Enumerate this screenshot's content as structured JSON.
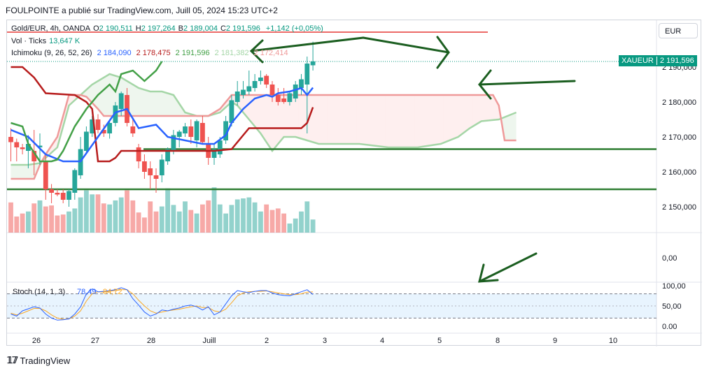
{
  "caption": "FOULPOINTE a publié sur TradingView.com, Juill 05, 2024 15:23 UTC+2",
  "legend": {
    "symbol": "Gold/EUR, 4h, OANDA",
    "ohlc": [
      {
        "key": "O",
        "value": "2 190,511"
      },
      {
        "key": "H",
        "value": "2 197,264"
      },
      {
        "key": "B",
        "value": "2 189,004"
      },
      {
        "key": "C",
        "value": "2 191,596"
      }
    ],
    "change": "+1,142 (+0,05%)",
    "volume_label": "Vol · Ticks",
    "volume_value": "13,647 K",
    "ichimoku_label": "Ichimoku (9, 26, 52, 26)",
    "ichimoku_values": [
      "2 184,090",
      "2 178,475",
      "2 191,596",
      "2 181,382",
      "2 172,414"
    ]
  },
  "currency": "EUR",
  "price_badge": {
    "symbol": "XAUEUR",
    "price": "2 191,596"
  },
  "stoch": {
    "label": "Stoch (14, 1, 3)",
    "k": "78,49",
    "d": "84,72"
  },
  "footer": {
    "brand": "TradingView"
  },
  "colors": {
    "up": "#26a69a",
    "down": "#ef5350",
    "tenkan": "#2962ff",
    "kijun": "#b71c1c",
    "chikou": "#43a047",
    "spanA": "#a5d6a7",
    "spanB": "#ef9a9a",
    "stochK": "#2962ff",
    "stochD": "#f9a825",
    "hline": "#2e7d32",
    "annot": "#1b5e20"
  },
  "chart_data": {
    "type": "candlestick",
    "title": "Gold/EUR, 4h, OANDA",
    "x_labels": [
      "26",
      "27",
      "28",
      "Juill",
      "2",
      "3",
      "4",
      "5",
      "8",
      "9",
      "10"
    ],
    "price_ticks": [
      "2 150,000",
      "2 160,000",
      "2 170,000",
      "2 180,000",
      "2 190,000"
    ],
    "ylim": [
      2145,
      2203
    ],
    "current_price": 2191.596,
    "candles": [
      {
        "o": 2170.0,
        "h": 2172.5,
        "l": 2163.0,
        "c": 2168.5
      },
      {
        "o": 2168.5,
        "h": 2169.5,
        "l": 2163.0,
        "c": 2167.0
      },
      {
        "o": 2167.0,
        "h": 2168.0,
        "l": 2165.0,
        "c": 2166.5
      },
      {
        "o": 2166.0,
        "h": 2170.5,
        "l": 2161.0,
        "c": 2168.0
      },
      {
        "o": 2166.0,
        "h": 2172.0,
        "l": 2159.0,
        "c": 2163.0
      },
      {
        "o": 2167.0,
        "h": 2171.0,
        "l": 2162.0,
        "c": 2167.5
      },
      {
        "o": 2163.0,
        "h": 2165.0,
        "l": 2152.0,
        "c": 2155.0
      },
      {
        "o": 2155.0,
        "h": 2156.5,
        "l": 2151.0,
        "c": 2154.0
      },
      {
        "o": 2154.0,
        "h": 2155.0,
        "l": 2153.0,
        "c": 2153.5
      },
      {
        "o": 2154.0,
        "h": 2155.0,
        "l": 2151.0,
        "c": 2152.0
      },
      {
        "o": 2152.0,
        "h": 2155.0,
        "l": 2150.0,
        "c": 2154.5
      },
      {
        "o": 2154.0,
        "h": 2161.0,
        "l": 2152.0,
        "c": 2160.5
      },
      {
        "o": 2159.0,
        "h": 2170.0,
        "l": 2158.0,
        "c": 2166.5
      },
      {
        "o": 2166.0,
        "h": 2173.0,
        "l": 2165.0,
        "c": 2171.5
      },
      {
        "o": 2171.0,
        "h": 2176.0,
        "l": 2170.0,
        "c": 2175.0
      },
      {
        "o": 2175.0,
        "h": 2176.5,
        "l": 2171.0,
        "c": 2172.0
      },
      {
        "o": 2172.0,
        "h": 2173.5,
        "l": 2170.0,
        "c": 2171.0
      },
      {
        "o": 2171.0,
        "h": 2175.0,
        "l": 2169.5,
        "c": 2174.0
      },
      {
        "o": 2174.0,
        "h": 2180.0,
        "l": 2173.0,
        "c": 2179.0
      },
      {
        "o": 2178.0,
        "h": 2183.0,
        "l": 2176.0,
        "c": 2182.5
      },
      {
        "o": 2182.0,
        "h": 2184.0,
        "l": 2173.0,
        "c": 2174.0
      },
      {
        "o": 2173.0,
        "h": 2175.0,
        "l": 2170.0,
        "c": 2171.0
      },
      {
        "o": 2167.0,
        "h": 2168.0,
        "l": 2161.0,
        "c": 2163.0
      },
      {
        "o": 2163.0,
        "h": 2165.0,
        "l": 2158.0,
        "c": 2160.0
      },
      {
        "o": 2161.0,
        "h": 2163.0,
        "l": 2155.0,
        "c": 2159.0
      },
      {
        "o": 2159.0,
        "h": 2161.0,
        "l": 2154.0,
        "c": 2158.0
      },
      {
        "o": 2159.0,
        "h": 2165.0,
        "l": 2157.0,
        "c": 2163.5
      },
      {
        "o": 2163.0,
        "h": 2167.0,
        "l": 2162.0,
        "c": 2166.5
      },
      {
        "o": 2166.0,
        "h": 2172.0,
        "l": 2165.0,
        "c": 2170.5
      },
      {
        "o": 2170.0,
        "h": 2172.0,
        "l": 2167.0,
        "c": 2171.5
      },
      {
        "o": 2171.0,
        "h": 2174.0,
        "l": 2170.0,
        "c": 2173.0
      },
      {
        "o": 2173.0,
        "h": 2175.0,
        "l": 2168.0,
        "c": 2170.0
      },
      {
        "o": 2169.0,
        "h": 2175.0,
        "l": 2167.0,
        "c": 2174.5
      },
      {
        "o": 2174.0,
        "h": 2176.0,
        "l": 2168.0,
        "c": 2168.5
      },
      {
        "o": 2168.0,
        "h": 2170.0,
        "l": 2162.0,
        "c": 2164.0
      },
      {
        "o": 2164.0,
        "h": 2168.0,
        "l": 2162.0,
        "c": 2166.5
      },
      {
        "o": 2165.0,
        "h": 2170.0,
        "l": 2164.0,
        "c": 2169.0
      },
      {
        "o": 2169.0,
        "h": 2176.0,
        "l": 2168.0,
        "c": 2174.5
      },
      {
        "o": 2174.0,
        "h": 2182.0,
        "l": 2173.0,
        "c": 2180.5
      },
      {
        "o": 2180.0,
        "h": 2186.0,
        "l": 2179.0,
        "c": 2183.0
      },
      {
        "o": 2182.0,
        "h": 2186.0,
        "l": 2181.0,
        "c": 2183.5
      },
      {
        "o": 2183.0,
        "h": 2189.0,
        "l": 2182.0,
        "c": 2184.5
      },
      {
        "o": 2184.0,
        "h": 2188.0,
        "l": 2183.0,
        "c": 2186.0
      },
      {
        "o": 2186.0,
        "h": 2189.0,
        "l": 2185.0,
        "c": 2187.0
      },
      {
        "o": 2187.5,
        "h": 2188.0,
        "l": 2184.0,
        "c": 2185.0
      },
      {
        "o": 2185.0,
        "h": 2186.0,
        "l": 2180.0,
        "c": 2182.0
      },
      {
        "o": 2182.0,
        "h": 2184.0,
        "l": 2179.0,
        "c": 2180.0
      },
      {
        "o": 2181.0,
        "h": 2184.0,
        "l": 2179.5,
        "c": 2180.0
      },
      {
        "o": 2180.0,
        "h": 2183.0,
        "l": 2179.0,
        "c": 2182.5
      },
      {
        "o": 2181.0,
        "h": 2186.0,
        "l": 2180.0,
        "c": 2185.0
      },
      {
        "o": 2184.0,
        "h": 2188.0,
        "l": 2182.0,
        "c": 2186.5
      },
      {
        "o": 2185.0,
        "h": 2193.0,
        "l": 2171.0,
        "c": 2191.0
      },
      {
        "o": 2190.511,
        "h": 2197.264,
        "l": 2189.004,
        "c": 2191.596
      }
    ],
    "volume": [
      60,
      32,
      38,
      42,
      58,
      64,
      52,
      54,
      34,
      36,
      42,
      48,
      70,
      84,
      76,
      76,
      58,
      56,
      64,
      70,
      84,
      64,
      40,
      30,
      62,
      42,
      52,
      88,
      55,
      42,
      62,
      45,
      38,
      56,
      64,
      90,
      56,
      38,
      55,
      66,
      68,
      70,
      60,
      42,
      56,
      45,
      48,
      38,
      18,
      28,
      42,
      62,
      26
    ],
    "volume_up": [
      false,
      false,
      false,
      true,
      false,
      true,
      false,
      false,
      false,
      false,
      true,
      true,
      true,
      true,
      true,
      false,
      false,
      true,
      true,
      true,
      false,
      false,
      false,
      false,
      false,
      false,
      true,
      true,
      true,
      true,
      true,
      false,
      true,
      false,
      false,
      true,
      true,
      true,
      true,
      true,
      true,
      true,
      true,
      true,
      false,
      false,
      false,
      false,
      true,
      true,
      true,
      true,
      true
    ],
    "ichimoku": {
      "tenkan": [
        [
          0,
          2172
        ],
        [
          3,
          2170
        ],
        [
          6,
          2165
        ],
        [
          9,
          2163
        ],
        [
          12,
          2163
        ],
        [
          15,
          2170
        ],
        [
          18,
          2177
        ],
        [
          20,
          2178
        ],
        [
          22,
          2172.5
        ],
        [
          25,
          2173.5
        ],
        [
          27,
          2170
        ],
        [
          30,
          2169
        ],
        [
          33,
          2168
        ],
        [
          35,
          2168
        ],
        [
          37,
          2170.5
        ],
        [
          38,
          2174
        ],
        [
          40,
          2178
        ],
        [
          42,
          2181
        ],
        [
          44,
          2182
        ],
        [
          45,
          2181.5
        ],
        [
          46,
          2182.5
        ],
        [
          48,
          2183
        ],
        [
          50,
          2184
        ],
        [
          51,
          2182
        ],
        [
          52,
          2184.09
        ]
      ],
      "kijun": [
        [
          0,
          2190
        ],
        [
          2,
          2190
        ],
        [
          4,
          2187
        ],
        [
          6,
          2182.5
        ],
        [
          11,
          2182
        ],
        [
          13,
          2180
        ],
        [
          14,
          2178
        ],
        [
          15,
          2163
        ],
        [
          17,
          2163
        ],
        [
          18,
          2164
        ],
        [
          19,
          2166
        ],
        [
          25,
          2166
        ],
        [
          30,
          2166
        ],
        [
          35,
          2166
        ],
        [
          38,
          2166.5
        ],
        [
          41,
          2172.5
        ],
        [
          44,
          2172.5
        ],
        [
          50,
          2172.5
        ],
        [
          51,
          2174
        ],
        [
          52,
          2178.475
        ]
      ],
      "chikou": [
        [
          0,
          2174
        ],
        [
          2,
          2173
        ],
        [
          3,
          2168
        ],
        [
          5,
          2163
        ],
        [
          7,
          2163
        ],
        [
          8,
          2163.5
        ],
        [
          9,
          2166
        ],
        [
          11,
          2173
        ],
        [
          13,
          2178
        ],
        [
          15,
          2182
        ],
        [
          17,
          2185
        ],
        [
          18,
          2183
        ],
        [
          19,
          2188
        ],
        [
          21,
          2189
        ],
        [
          23,
          2186
        ],
        [
          25,
          2189
        ],
        [
          26,
          2191.596
        ]
      ],
      "spanA": [
        [
          0,
          2162
        ],
        [
          3,
          2162
        ],
        [
          5,
          2162.5
        ],
        [
          6,
          2164
        ],
        [
          8,
          2167
        ],
        [
          10,
          2179
        ],
        [
          12,
          2182
        ],
        [
          14,
          2185
        ],
        [
          17,
          2188
        ],
        [
          19,
          2187
        ],
        [
          22,
          2184
        ],
        [
          24,
          2183
        ],
        [
          26,
          2183
        ],
        [
          28,
          2182
        ],
        [
          30,
          2177
        ],
        [
          32,
          2176
        ],
        [
          34,
          2176
        ],
        [
          36,
          2177
        ],
        [
          38,
          2180
        ],
        [
          39,
          2179
        ],
        [
          41,
          2175
        ],
        [
          43,
          2171
        ],
        [
          45,
          2166
        ],
        [
          47,
          2170
        ],
        [
          49,
          2170
        ],
        [
          51,
          2169
        ],
        [
          53,
          2168
        ],
        [
          60,
          2168
        ],
        [
          65,
          2167
        ],
        [
          70,
          2167
        ],
        [
          74,
          2168
        ],
        [
          77,
          2170
        ],
        [
          79,
          2172.5
        ],
        [
          81,
          2174.5
        ],
        [
          84,
          2175
        ],
        [
          87,
          2177
        ]
      ],
      "spanB": [
        [
          0,
          2158
        ],
        [
          2,
          2158
        ],
        [
          4,
          2158
        ],
        [
          5,
          2162
        ],
        [
          6,
          2165
        ],
        [
          8,
          2170
        ],
        [
          10,
          2182
        ],
        [
          12,
          2182
        ],
        [
          13,
          2181.5
        ],
        [
          15,
          2178
        ],
        [
          16,
          2176
        ],
        [
          18,
          2176
        ],
        [
          21,
          2176
        ],
        [
          23,
          2176
        ],
        [
          25,
          2176
        ],
        [
          26,
          2176
        ],
        [
          28,
          2176
        ],
        [
          30,
          2176
        ],
        [
          32,
          2176
        ],
        [
          34,
          2176
        ],
        [
          36,
          2178
        ],
        [
          38,
          2182
        ],
        [
          42,
          2182
        ],
        [
          50,
          2182
        ],
        [
          56,
          2182
        ],
        [
          60,
          2182
        ],
        [
          65,
          2182
        ],
        [
          70,
          2182
        ],
        [
          75,
          2182
        ],
        [
          80,
          2182
        ],
        [
          83,
          2182
        ],
        [
          84,
          2179
        ],
        [
          85,
          2169
        ],
        [
          87,
          2169
        ]
      ]
    },
    "horizontal_lines": [
      2166.5,
      2155.0
    ],
    "horizontal_line_extra": 2200.0,
    "stoch_panel": {
      "label": "Stoch (14, 1, 3)",
      "ticks": [
        "100,00",
        "50,00",
        "0.00"
      ],
      "upper_band": 80,
      "lower_band": 20,
      "k": [
        30,
        25,
        38,
        43,
        48,
        45,
        30,
        20,
        15,
        16,
        18,
        30,
        48,
        80,
        92,
        85,
        86,
        88,
        90,
        95,
        90,
        68,
        52,
        35,
        25,
        30,
        40,
        38,
        42,
        45,
        50,
        52,
        48,
        40,
        48,
        28,
        35,
        55,
        75,
        88,
        85,
        83,
        86,
        88,
        88,
        82,
        78,
        76,
        75,
        80,
        85,
        90,
        78.49
      ],
      "d": [
        32,
        28,
        32,
        38,
        44,
        44,
        38,
        28,
        20,
        17,
        18,
        25,
        38,
        62,
        80,
        85,
        84,
        86,
        88,
        90,
        90,
        80,
        64,
        50,
        38,
        32,
        35,
        38,
        40,
        42,
        45,
        48,
        50,
        46,
        46,
        38,
        35,
        42,
        58,
        75,
        82,
        85,
        86,
        86,
        87,
        85,
        82,
        80,
        78,
        78,
        80,
        84,
        84.72
      ]
    },
    "middle_panel_tick": "0,00",
    "annotations": [
      "arrow pointing right along upper Kumo",
      "arrow pointing right to last candle",
      "arrow pointing left to price",
      "arrow pointing down-left to stochastic"
    ]
  }
}
